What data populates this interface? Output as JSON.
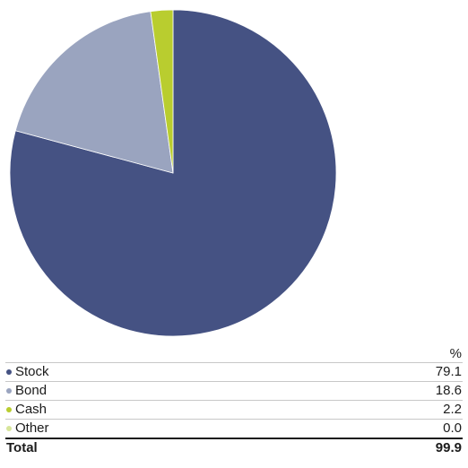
{
  "chart_data": {
    "type": "pie",
    "title": "",
    "header": "%",
    "series": [
      {
        "name": "Stock",
        "value": 79.1,
        "color": "#455283"
      },
      {
        "name": "Bond",
        "value": 18.6,
        "color": "#9aa4bf"
      },
      {
        "name": "Cash",
        "value": 2.2,
        "color": "#b9cd2f"
      },
      {
        "name": "Other",
        "value": 0.0,
        "color": "#d7e59a"
      }
    ],
    "total": {
      "label": "Total",
      "value": "99.9"
    },
    "formatted_values": [
      "79.1",
      "18.6",
      "2.2",
      "0.0"
    ]
  },
  "colors": {
    "stock": "#455283",
    "bond": "#9aa4bf",
    "cash": "#b9cd2f",
    "other": "#d7e59a",
    "divider": "#c8c8c8",
    "total_rule": "#1b1b1b"
  }
}
